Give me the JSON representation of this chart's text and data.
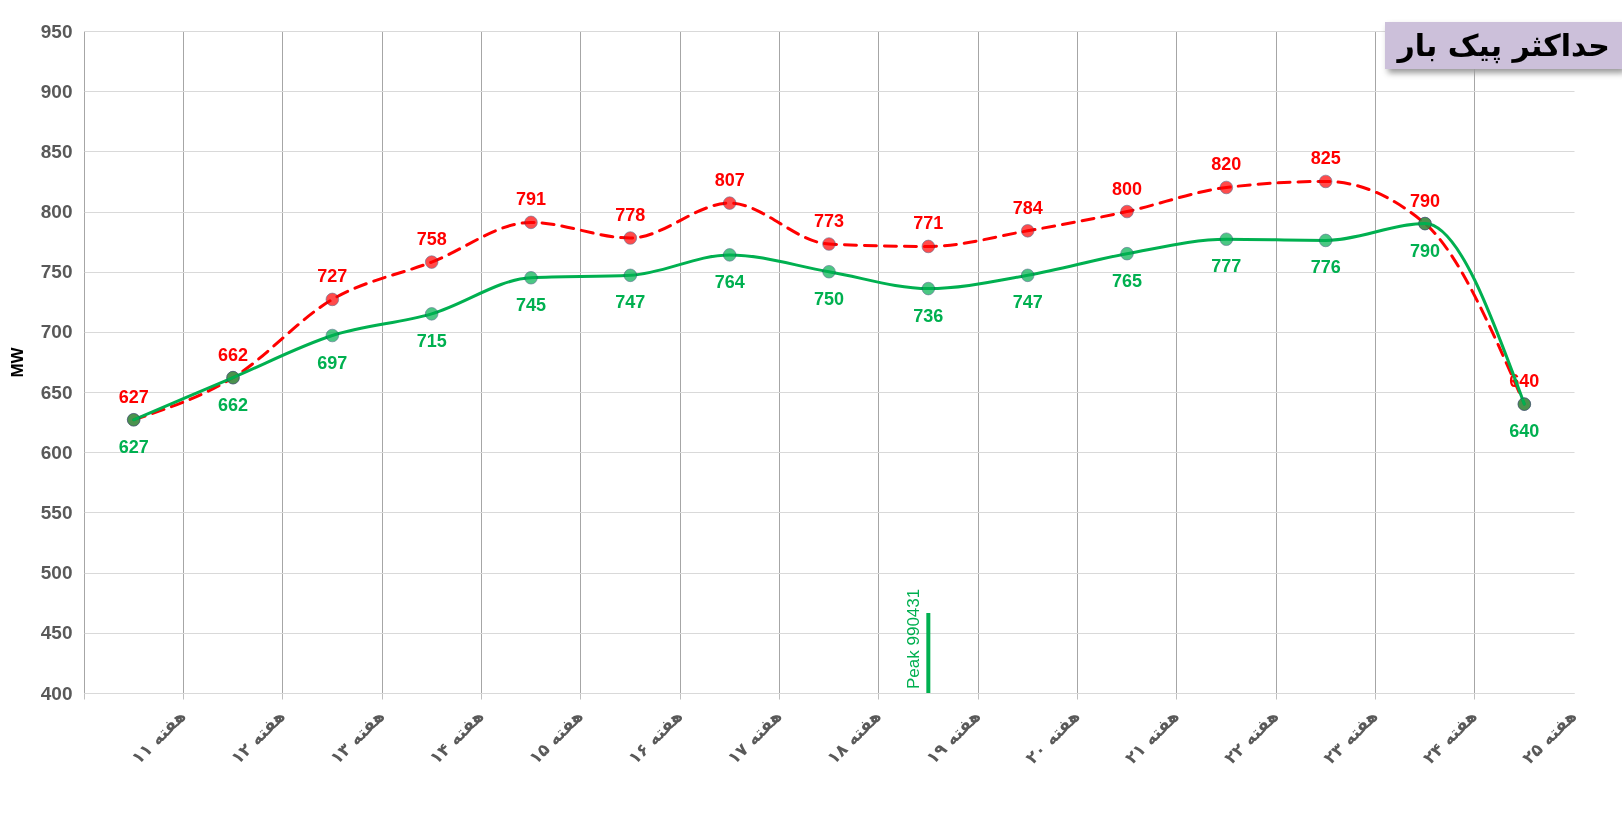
{
  "chart_data": {
    "type": "line",
    "title": "حداکثر پیک بار",
    "ylabel": "MW",
    "categories": [
      "هفته ۱۱",
      "هفته ۱۲",
      "هفته ۱۳",
      "هفته ۱۴",
      "هفته ۱۵",
      "هفته ۱۶",
      "هفته ۱۷",
      "هفته ۱۸",
      "هفته ۱۹",
      "هفته ۲۰",
      "هفته ۲۱",
      "هفته ۲۲",
      "هفته ۲۳",
      "هفته ۲۴",
      "هفته ۲۵"
    ],
    "series": [
      {
        "color": "#ff0000",
        "line_style": "dashed",
        "values": [
          627,
          662,
          727,
          758,
          791,
          778,
          807,
          773,
          771,
          784,
          800,
          820,
          825,
          790,
          640
        ]
      },
      {
        "color": "#00b050",
        "line_style": "solid",
        "values": [
          627,
          662,
          697,
          715,
          745,
          747,
          764,
          750,
          736,
          747,
          765,
          777,
          776,
          790,
          640
        ]
      }
    ],
    "ylim": [
      400,
      950
    ],
    "yticks": [
      400,
      450,
      500,
      550,
      600,
      650,
      700,
      750,
      800,
      850,
      900,
      950
    ],
    "grid": true,
    "marker": "circle",
    "data_labels": true,
    "ref_lines": [
      {
        "axis": "x",
        "value": "هفته ۱۹",
        "label": "Peak 990431",
        "color": "#00b050"
      }
    ]
  }
}
